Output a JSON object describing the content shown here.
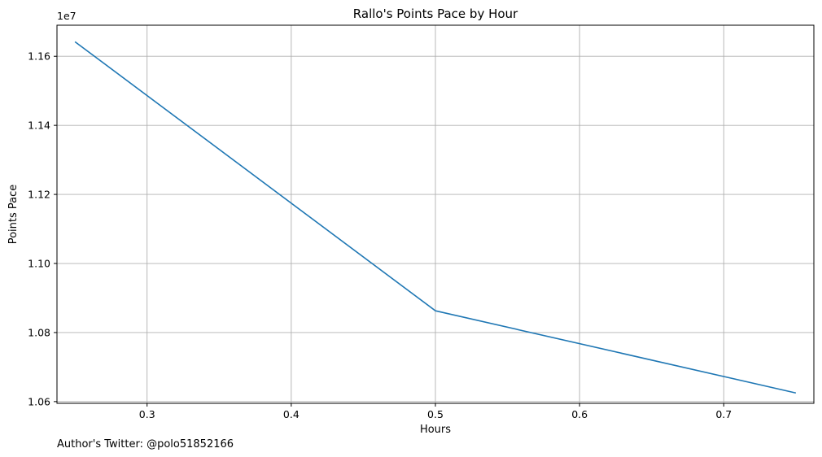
{
  "chart_data": {
    "type": "line",
    "title": "Rallo's Points Pace by Hour",
    "xlabel": "Hours",
    "ylabel": "Points Pace",
    "y_offset_label": "1e7",
    "xlim": [
      0.2375,
      0.7625
    ],
    "ylim": [
      1.0595,
      1.169
    ],
    "y_scale_exponent": 7,
    "x_ticks": [
      0.3,
      0.4,
      0.5,
      0.6,
      0.7
    ],
    "x_tick_labels": [
      "0.3",
      "0.4",
      "0.5",
      "0.6",
      "0.7"
    ],
    "y_ticks": [
      1.06,
      1.08,
      1.1,
      1.12,
      1.14,
      1.16
    ],
    "y_tick_labels": [
      "1.06",
      "1.08",
      "1.10",
      "1.12",
      "1.14",
      "1.16"
    ],
    "grid": true,
    "series": [
      {
        "color": "#1f77b4",
        "x": [
          0.25,
          0.5,
          0.75
        ],
        "y": [
          1.1642,
          1.0863,
          1.0625
        ]
      }
    ]
  },
  "footer": {
    "text": "Author's Twitter: @polo51852166"
  }
}
